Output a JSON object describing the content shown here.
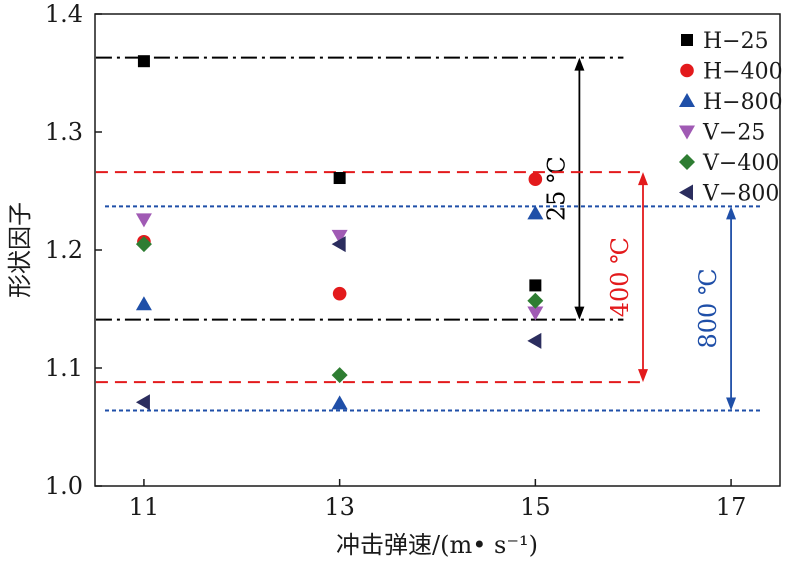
{
  "chart_data": {
    "type": "scatter",
    "xlabel": "冲击弹速/(m• s⁻¹)",
    "ylabel": "形状因子",
    "xlim": [
      10.5,
      17.5
    ],
    "ylim": [
      1.0,
      1.4
    ],
    "x_ticks": [
      "11",
      "13",
      "15",
      "17"
    ],
    "y_ticks": [
      "1.0",
      "1.1",
      "1.2",
      "1.3",
      "1.4"
    ],
    "grid": false,
    "legend_position": "top-right",
    "series": [
      {
        "name": "H−25",
        "marker": "square",
        "color": "#000000",
        "points": [
          [
            11,
            1.36
          ],
          [
            13,
            1.261
          ],
          [
            15,
            1.17
          ]
        ]
      },
      {
        "name": "H−400",
        "marker": "circle",
        "color": "#e31a1c",
        "points": [
          [
            11,
            1.207
          ],
          [
            13,
            1.163
          ],
          [
            15,
            1.26
          ]
        ]
      },
      {
        "name": "H−800",
        "marker": "triangle-up",
        "color": "#1f4fa8",
        "points": [
          [
            11,
            1.154
          ],
          [
            13,
            1.07
          ],
          [
            15,
            1.231
          ]
        ]
      },
      {
        "name": "V−25",
        "marker": "triangle-down",
        "color": "#a05ab4",
        "points": [
          [
            11,
            1.226
          ],
          [
            13,
            1.212
          ],
          [
            15,
            1.147
          ]
        ]
      },
      {
        "name": "V−400",
        "marker": "diamond",
        "color": "#2e7d32",
        "points": [
          [
            11,
            1.205
          ],
          [
            13,
            1.094
          ],
          [
            15,
            1.157
          ]
        ]
      },
      {
        "name": "V−800",
        "marker": "triangle-left",
        "color": "#2b2d5e",
        "points": [
          [
            11,
            1.071
          ],
          [
            13,
            1.205
          ],
          [
            15,
            1.123
          ]
        ]
      }
    ],
    "reference_ranges": [
      {
        "label": "25 ℃",
        "color": "#000000",
        "style": "dash-dot",
        "upper": 1.363,
        "lower": 1.141,
        "x_end": 15.9,
        "arrow_x": 15.45
      },
      {
        "label": "400 ℃",
        "color": "#e31a1c",
        "style": "dashed",
        "upper": 1.266,
        "lower": 1.088,
        "x_end": 16.1,
        "arrow_x": 16.1
      },
      {
        "label": "800 ℃",
        "color": "#1f4fa8",
        "style": "dotted",
        "upper": 1.237,
        "lower": 1.064,
        "x_end": 17.3,
        "arrow_x": 17.0
      }
    ]
  }
}
